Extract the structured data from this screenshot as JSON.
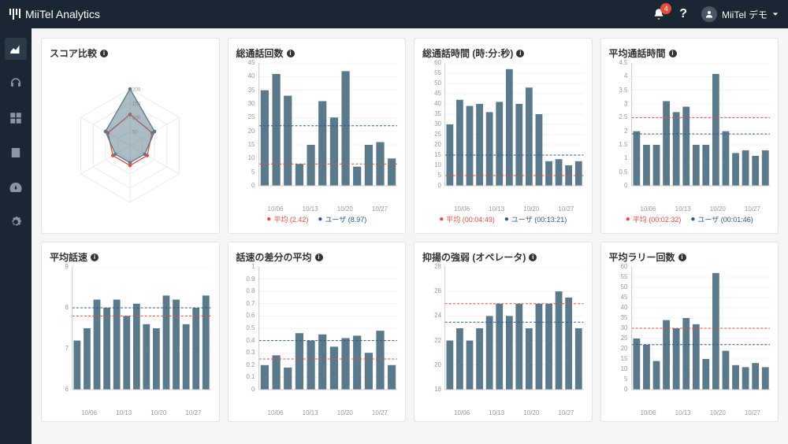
{
  "topbar": {
    "brand": "MiiTel Analytics",
    "badge": "4",
    "user": "MiiTel デモ"
  },
  "sidebar": [
    "chart",
    "headphones",
    "grid",
    "contacts",
    "dashboard",
    "settings"
  ],
  "colors": {
    "bar": "#5a7a8c",
    "avg": "#e74c3c",
    "user": "#2c5a8c",
    "grid": "#e8e8e8",
    "axis": "#ccc",
    "radarFill": "rgba(90,122,140,0.5)",
    "radarLine": "#5a7a8c",
    "radarAvg": "#e74c3c"
  },
  "radar": {
    "title": "スコア比較",
    "axes": 6,
    "max": 200,
    "rings": [
      50,
      100,
      150,
      200
    ],
    "user": [
      200,
      100,
      60,
      60,
      60,
      100
    ],
    "avg": [
      110,
      90,
      70,
      70,
      70,
      90
    ]
  },
  "charts": [
    {
      "title": "総通話回数",
      "ymax": 45,
      "ystep": 5,
      "bars": [
        35,
        41,
        33,
        8,
        15,
        31,
        25,
        42,
        7,
        15,
        16,
        10
      ],
      "avg": 8,
      "user": 22,
      "legendAvg": "平均 (2.42)",
      "legendUser": "ユーザ (8.97)",
      "xlabels": [
        "10/06",
        "10/13",
        "10/20",
        "10/27"
      ]
    },
    {
      "title": "総通話時間 (時:分:秒)",
      "ymax": 60,
      "ystep": 5,
      "bars": [
        30,
        42,
        39,
        40,
        36,
        41,
        57,
        40,
        48,
        35,
        12,
        13,
        10,
        12
      ],
      "avg": 5,
      "user": 15,
      "legendAvg": "平均 (00:04:49)",
      "legendUser": "ユーザ (00:13:21)",
      "xlabels": [
        "10/06",
        "10/13",
        "10/20",
        "10/27"
      ]
    },
    {
      "title": "平均通話時間",
      "ymax": 4.5,
      "ystep": 0.5,
      "bars": [
        2.0,
        1.5,
        1.5,
        3.1,
        2.7,
        2.9,
        1.5,
        1.5,
        4.1,
        2.0,
        1.2,
        1.3,
        1.1,
        1.3
      ],
      "avg": 2.5,
      "user": 1.9,
      "legendAvg": "平均 (00:02:32)",
      "legendUser": "ユーザ (00:01:46)",
      "xlabels": [
        "10/06",
        "10/13",
        "10/20",
        "10/27"
      ]
    },
    {
      "title": "平均話速",
      "ymax": 9,
      "ystep": 1,
      "bars": [
        7.2,
        7.5,
        8.2,
        8.0,
        8.2,
        7.8,
        8.1,
        7.6,
        7.5,
        8.3,
        8.2,
        7.6,
        8.0,
        8.3
      ],
      "avg": 7.8,
      "user": 8.0,
      "xlabels": [
        "10/06",
        "10/13",
        "10/20",
        "10/27"
      ],
      "ymin": 6
    },
    {
      "title": "話速の差分の平均",
      "ymax": 1.0,
      "ystep": 0.1,
      "bars": [
        0.2,
        0.28,
        0.18,
        0.46,
        0.4,
        0.45,
        0.35,
        0.42,
        0.44,
        0.3,
        0.48,
        0.2
      ],
      "avg": 0.25,
      "user": 0.4,
      "xlabels": [
        "10/06",
        "10/13",
        "10/20",
        "10/27"
      ]
    },
    {
      "title": "抑揚の強弱 (オペレータ)",
      "ymax": 28,
      "ystep": 2,
      "bars": [
        22,
        23,
        22,
        23,
        24,
        25,
        24,
        25,
        23,
        25,
        25,
        26,
        25.5,
        23
      ],
      "avg": 25,
      "user": 23.5,
      "xlabels": [
        "10/06",
        "10/13",
        "10/20",
        "10/27"
      ],
      "ymin": 18
    },
    {
      "title": "平均ラリー回数",
      "ymax": 60,
      "ystep": 5,
      "bars": [
        25,
        22,
        14,
        34,
        30,
        35,
        32,
        15,
        57,
        19,
        12,
        11,
        13,
        11
      ],
      "avg": 30,
      "user": 22,
      "xlabels": [
        "10/06",
        "10/13",
        "10/20",
        "10/27"
      ]
    }
  ]
}
